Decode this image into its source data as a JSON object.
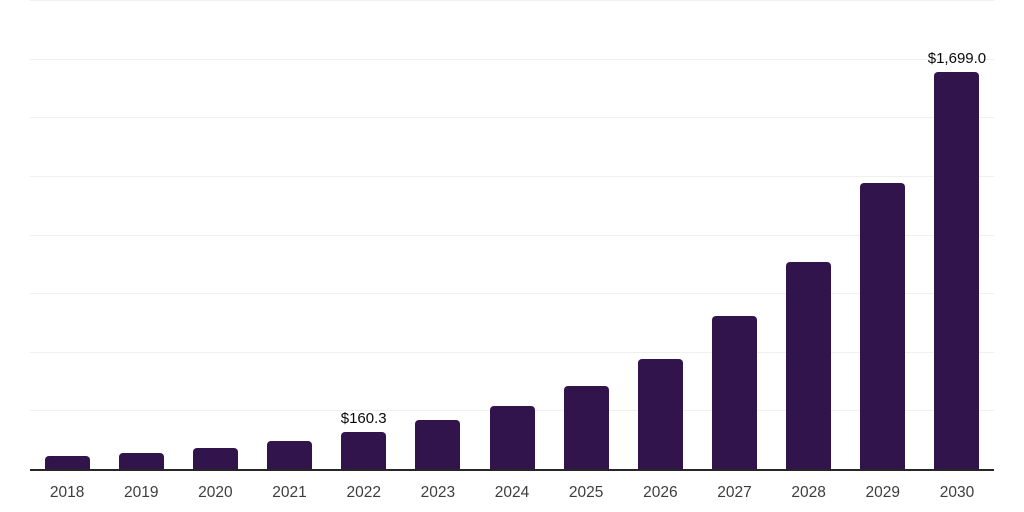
{
  "chart_data": {
    "type": "bar",
    "title": "",
    "xlabel": "",
    "ylabel": "",
    "categories": [
      "2018",
      "2019",
      "2020",
      "2021",
      "2022",
      "2023",
      "2024",
      "2025",
      "2026",
      "2027",
      "2028",
      "2029",
      "2030"
    ],
    "values": [
      60,
      73,
      93,
      124,
      160.3,
      214,
      272,
      358,
      473,
      658,
      885,
      1225,
      1699
    ],
    "data_labels": [
      "",
      "",
      "",
      "",
      "$160.3",
      "",
      "",
      "",
      "",
      "",
      "",
      "",
      "$1,699.0"
    ],
    "ylim": [
      0,
      2000
    ],
    "gridline_step": 250,
    "grid": true,
    "legend": "none",
    "colors": {
      "bar": "#30144b",
      "gridline": "#f0f0f0",
      "axis_line": "#262626",
      "tick_label": "#3d3d3d",
      "value_label": "#0a0a0a",
      "background": "#ffffff"
    }
  }
}
